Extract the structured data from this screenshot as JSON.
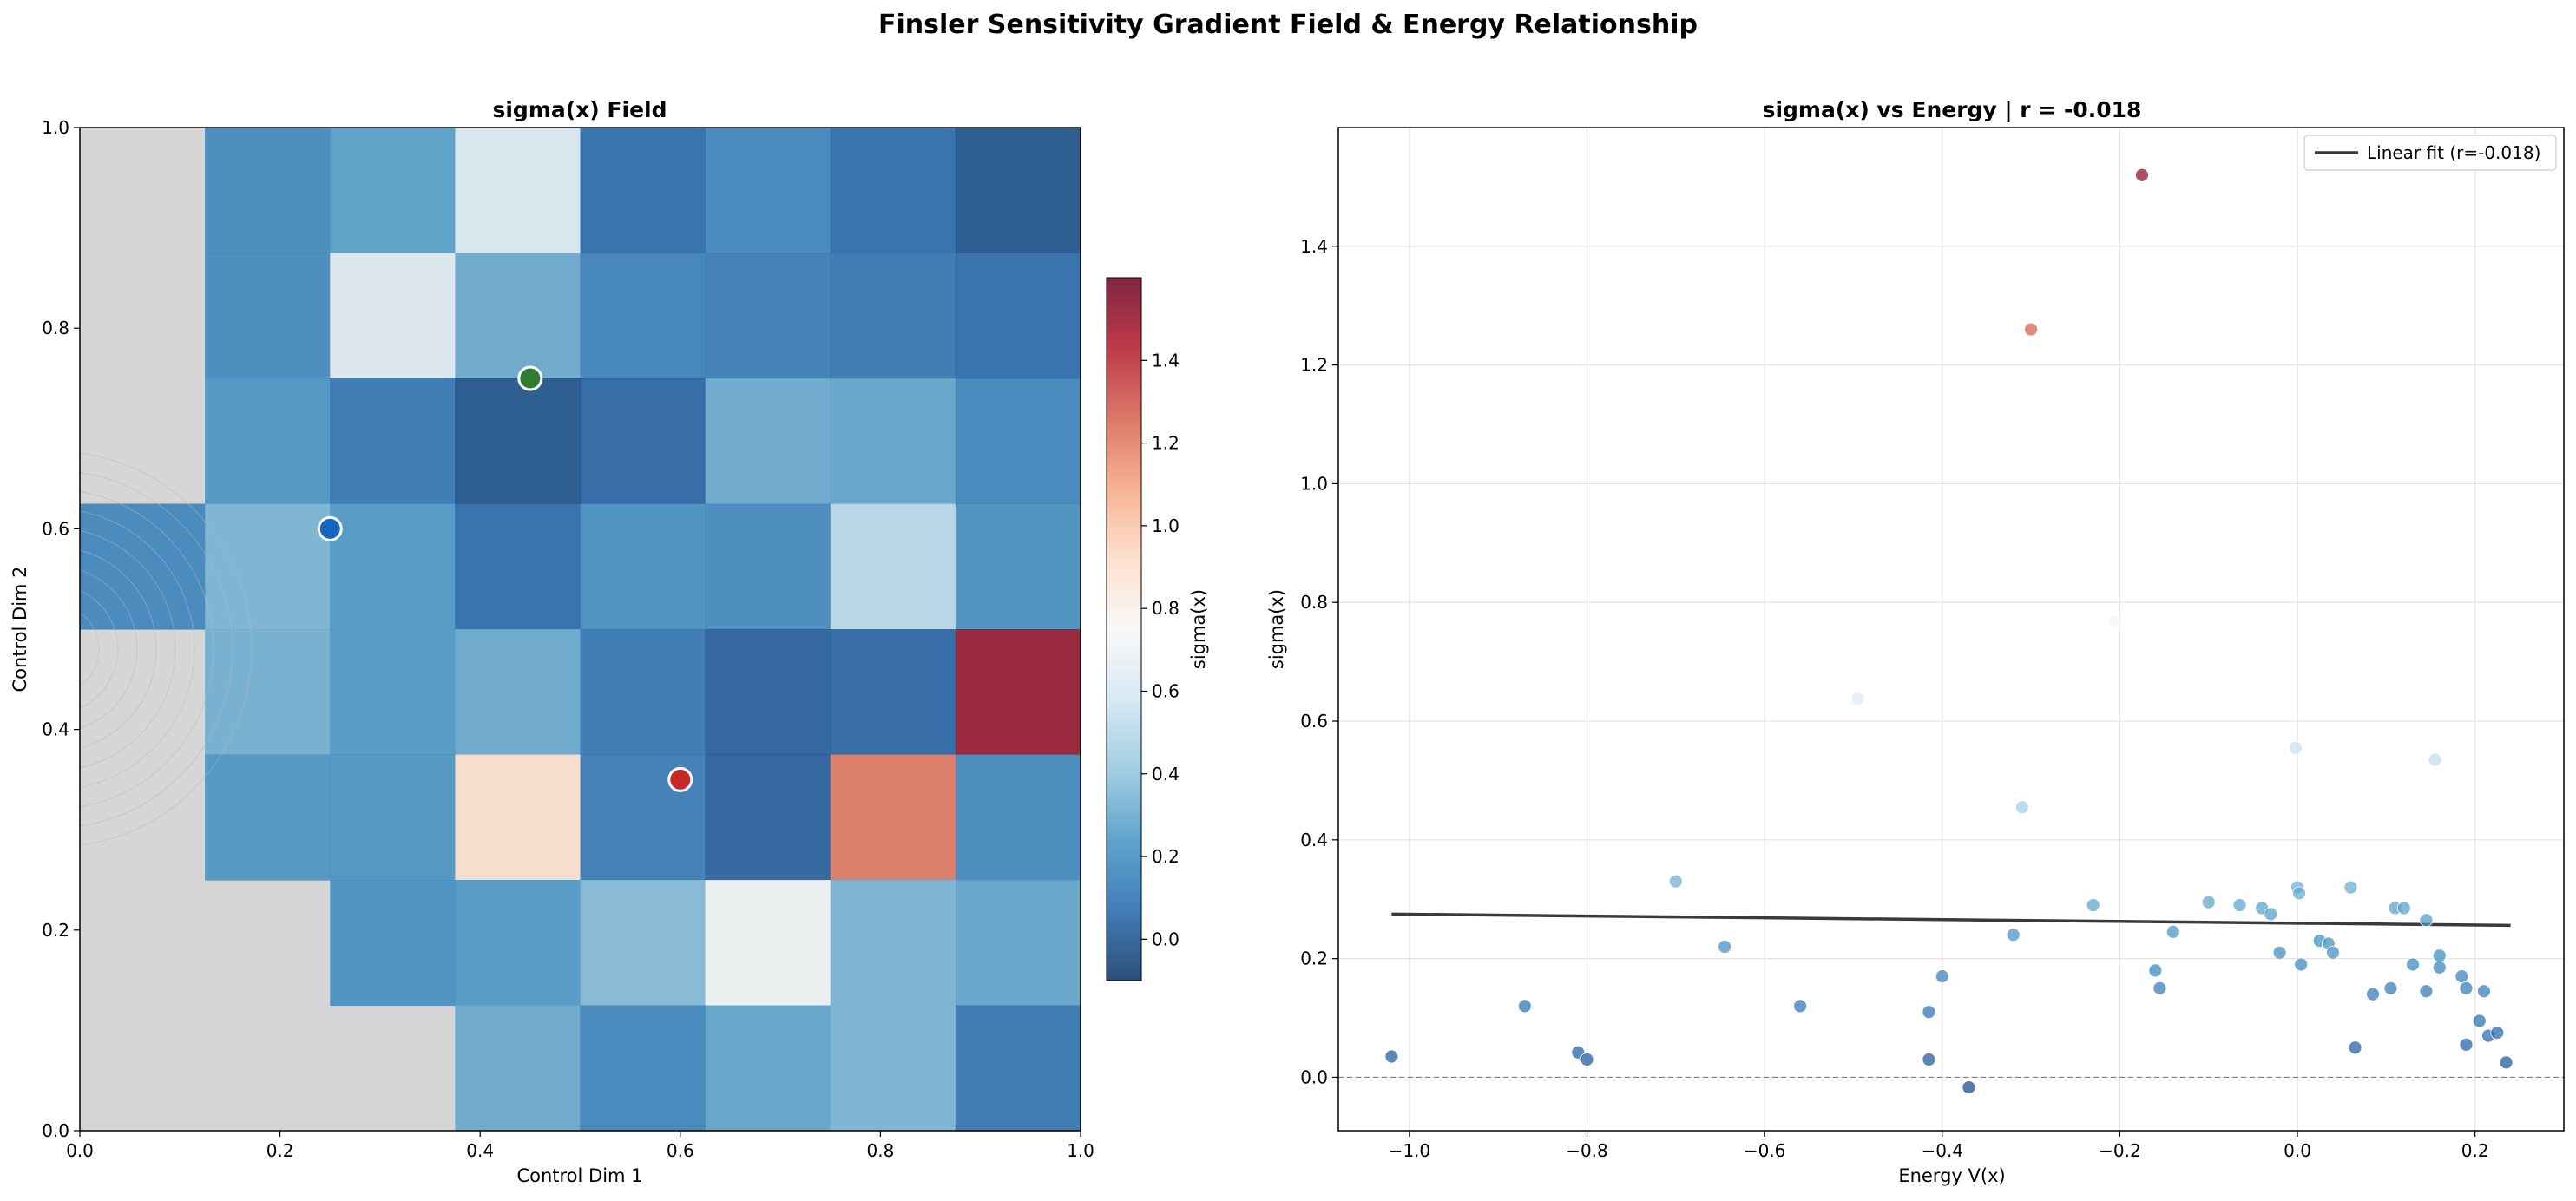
{
  "figure": {
    "title": "Finsler Sensitivity Gradient Field & Energy Relationship"
  },
  "chart_data": [
    {
      "type": "heatmap",
      "title": "sigma(x) Field",
      "xlabel": "Control Dim 1",
      "ylabel": "Control Dim 2",
      "xlim": [
        0,
        1
      ],
      "ylim": [
        0,
        1
      ],
      "xticks": [
        "0.0",
        "0.2",
        "0.4",
        "0.6",
        "0.8",
        "1.0"
      ],
      "yticks": [
        "0.0",
        "0.2",
        "0.4",
        "0.6",
        "0.8",
        "1.0"
      ],
      "grid_shape": [
        8,
        8
      ],
      "grid_note_cells_null_are_unsampled": true,
      "grid_rows_top_to_bottom": [
        [
          null,
          0.18,
          0.26,
          0.62,
          0.06,
          0.16,
          0.06,
          -0.02
        ],
        [
          null,
          0.18,
          0.64,
          0.3,
          0.14,
          0.12,
          0.1,
          0.06
        ],
        [
          null,
          0.22,
          0.1,
          -0.02,
          0.04,
          0.3,
          0.28,
          0.16
        ],
        [
          0.16,
          0.34,
          0.24,
          0.06,
          0.2,
          0.18,
          0.5,
          0.2
        ],
        [
          null,
          0.32,
          0.24,
          0.3,
          0.1,
          0.02,
          0.04,
          1.51
        ],
        [
          null,
          0.22,
          0.22,
          0.9,
          0.12,
          0.02,
          1.22,
          0.18
        ],
        [
          null,
          null,
          0.2,
          0.24,
          0.36,
          0.72,
          0.34,
          0.28
        ],
        [
          null,
          null,
          null,
          0.3,
          0.16,
          0.28,
          0.34,
          0.1
        ]
      ],
      "colorbar": {
        "label": "sigma(x)",
        "range": [
          -0.1,
          1.6
        ],
        "ticks": [
          "0.0",
          "0.2",
          "0.4",
          "0.6",
          "0.8",
          "1.0",
          "1.2",
          "1.4"
        ],
        "colormap": "RdBu_r"
      },
      "markers": [
        {
          "x": 0.45,
          "y": 0.75,
          "color": "#2e7d32"
        },
        {
          "x": 0.25,
          "y": 0.6,
          "color": "#1565c0"
        },
        {
          "x": 0.6,
          "y": 0.35,
          "color": "#c62828"
        }
      ]
    },
    {
      "type": "scatter",
      "title": "sigma(x) vs Energy | r = -0.018",
      "xlabel": "Energy V(x)",
      "ylabel": "sigma(x)",
      "xlim": [
        -1.08,
        0.3
      ],
      "ylim": [
        -0.09,
        1.6
      ],
      "xticks": [
        "−1.0",
        "−0.8",
        "−0.6",
        "−0.4",
        "−0.2",
        "0.0",
        "0.2"
      ],
      "yticks": [
        "0.0",
        "0.2",
        "0.4",
        "0.6",
        "0.8",
        "1.0",
        "1.2",
        "1.4"
      ],
      "grid": true,
      "legend": {
        "position": "top-right",
        "entries": [
          "Linear fit (r=-0.018)"
        ]
      },
      "fit_line": {
        "x": [
          -1.02,
          0.24
        ],
        "y": [
          0.275,
          0.256
        ]
      },
      "points": [
        {
          "x": -1.02,
          "y": 0.035
        },
        {
          "x": -0.87,
          "y": 0.12
        },
        {
          "x": -0.81,
          "y": 0.042
        },
        {
          "x": -0.8,
          "y": 0.03
        },
        {
          "x": -0.7,
          "y": 0.33
        },
        {
          "x": -0.645,
          "y": 0.22
        },
        {
          "x": -0.56,
          "y": 0.12
        },
        {
          "x": -0.495,
          "y": 0.638
        },
        {
          "x": -0.415,
          "y": 0.11
        },
        {
          "x": -0.415,
          "y": 0.03
        },
        {
          "x": -0.4,
          "y": 0.17
        },
        {
          "x": -0.37,
          "y": -0.017
        },
        {
          "x": -0.32,
          "y": 0.24
        },
        {
          "x": -0.31,
          "y": 0.455
        },
        {
          "x": -0.3,
          "y": 1.26
        },
        {
          "x": -0.23,
          "y": 0.29
        },
        {
          "x": -0.205,
          "y": 0.767
        },
        {
          "x": -0.175,
          "y": 1.52
        },
        {
          "x": -0.16,
          "y": 0.18
        },
        {
          "x": -0.155,
          "y": 0.15
        },
        {
          "x": -0.14,
          "y": 0.245
        },
        {
          "x": -0.1,
          "y": 0.295
        },
        {
          "x": -0.065,
          "y": 0.29
        },
        {
          "x": -0.04,
          "y": 0.285
        },
        {
          "x": -0.03,
          "y": 0.275
        },
        {
          "x": -0.02,
          "y": 0.21
        },
        {
          "x": -0.002,
          "y": 0.555
        },
        {
          "x": 0.0,
          "y": 0.32
        },
        {
          "x": 0.002,
          "y": 0.31
        },
        {
          "x": 0.004,
          "y": 0.19
        },
        {
          "x": 0.025,
          "y": 0.23
        },
        {
          "x": 0.035,
          "y": 0.225
        },
        {
          "x": 0.04,
          "y": 0.21
        },
        {
          "x": 0.06,
          "y": 0.32
        },
        {
          "x": 0.065,
          "y": 0.05
        },
        {
          "x": 0.085,
          "y": 0.14
        },
        {
          "x": 0.11,
          "y": 0.285
        },
        {
          "x": 0.105,
          "y": 0.15
        },
        {
          "x": 0.12,
          "y": 0.285
        },
        {
          "x": 0.13,
          "y": 0.19
        },
        {
          "x": 0.145,
          "y": 0.265
        },
        {
          "x": 0.145,
          "y": 0.145
        },
        {
          "x": 0.155,
          "y": 0.535
        },
        {
          "x": 0.16,
          "y": 0.205
        },
        {
          "x": 0.16,
          "y": 0.185
        },
        {
          "x": 0.185,
          "y": 0.17
        },
        {
          "x": 0.19,
          "y": 0.15
        },
        {
          "x": 0.19,
          "y": 0.055
        },
        {
          "x": 0.205,
          "y": 0.095
        },
        {
          "x": 0.21,
          "y": 0.145
        },
        {
          "x": 0.215,
          "y": 0.07
        },
        {
          "x": 0.225,
          "y": 0.075
        },
        {
          "x": 0.235,
          "y": 0.025
        }
      ]
    }
  ]
}
